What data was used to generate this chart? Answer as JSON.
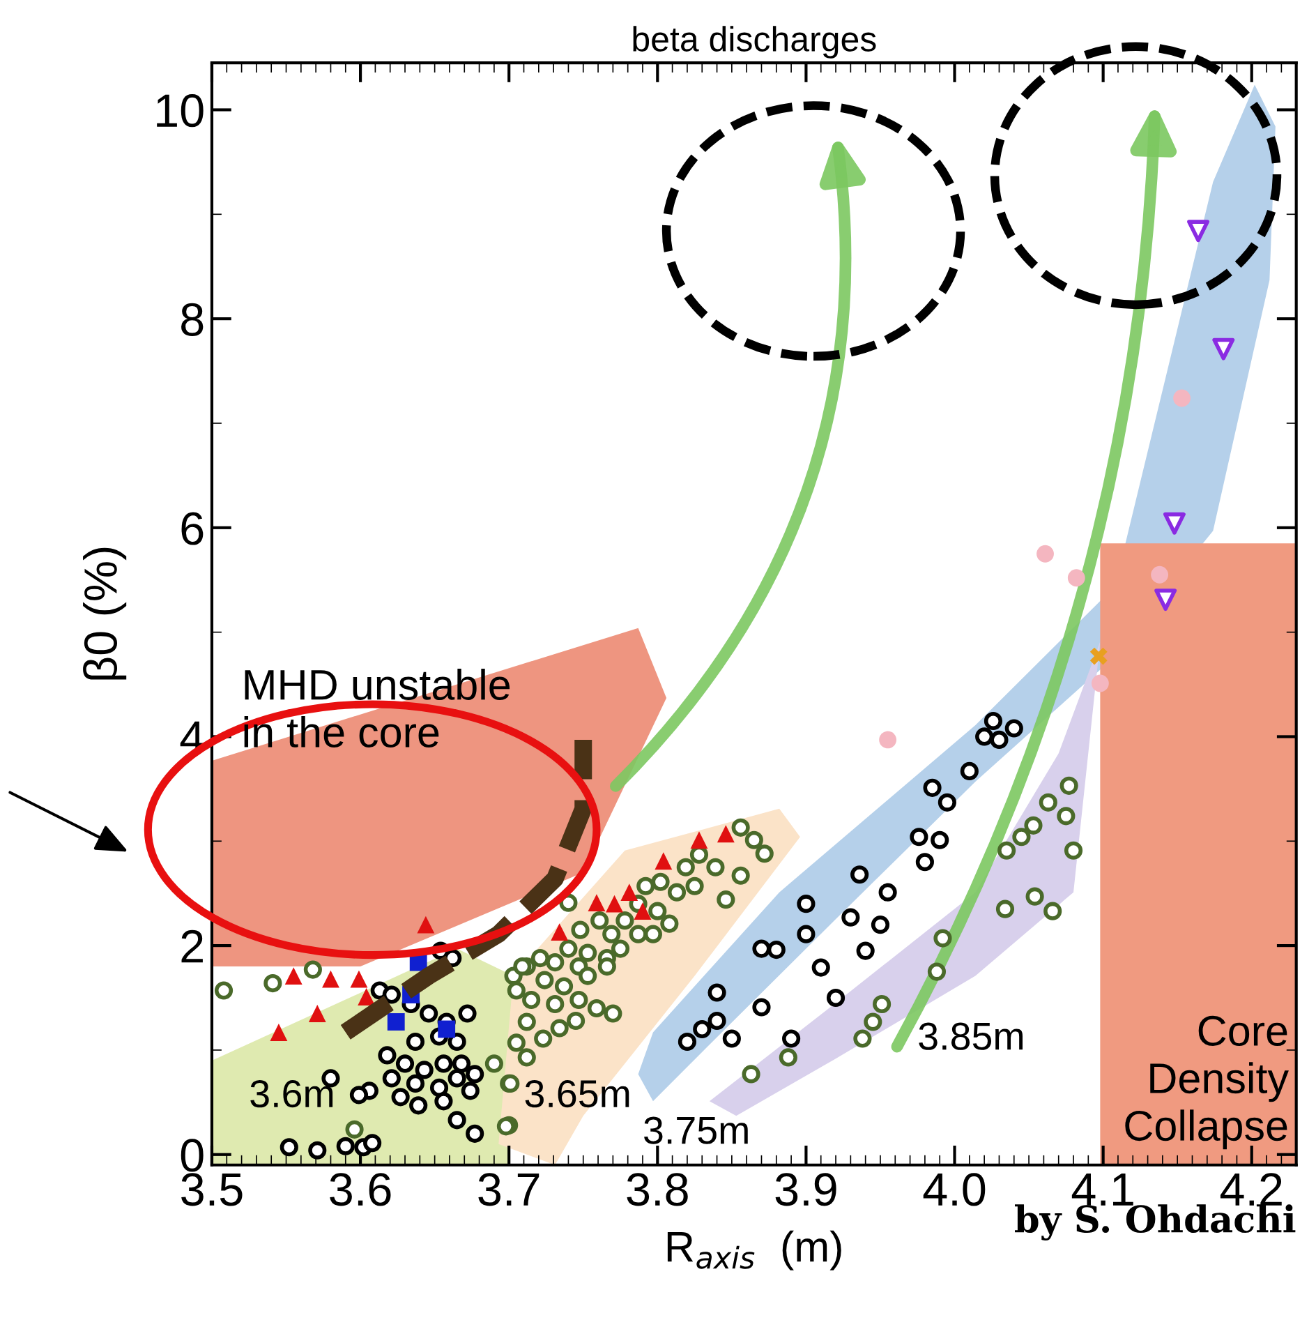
{
  "chart_data": {
    "type": "scatter",
    "title": "beta discharges",
    "xlabel": "R$_{axis}$  (m)",
    "ylabel": "β0 (%)",
    "xlim": [
      3.5,
      4.23
    ],
    "ylim": [
      -0.1,
      10.45
    ],
    "xticks": [
      3.5,
      3.6,
      3.7,
      3.8,
      3.9,
      {
        "value": 4.0,
        "label": "4.0"
      },
      4.1,
      4.2
    ],
    "yticks": [
      0,
      2,
      4,
      6,
      8,
      10
    ],
    "grid": false,
    "legend": false,
    "annotations": [
      "MHD unstable\nin the core",
      "3.6m",
      "3.65m",
      "3.75m",
      "3.85m",
      "Core\nDensity\nCollapse",
      "by S. Ohdachi"
    ],
    "series": [
      {
        "color": "#4a6a2a",
        "marker": "circle",
        "x": [
          3.856,
          3.865,
          3.872,
          3.856,
          3.846,
          3.839,
          3.828,
          3.819,
          3.825,
          3.813,
          3.802,
          3.792,
          3.787,
          3.8,
          3.808,
          3.778,
          3.769,
          3.761,
          3.787,
          3.797,
          3.775,
          3.766,
          3.753,
          3.74,
          3.747,
          3.731,
          3.721,
          3.712,
          3.703,
          3.724,
          3.737,
          3.753,
          3.766,
          3.759,
          3.77,
          3.745,
          3.734,
          3.723,
          3.712,
          3.705,
          3.712,
          3.7,
          3.7,
          3.705,
          3.715,
          3.731,
          3.747,
          3.74,
          3.748,
          3.863,
          3.888,
          3.508,
          3.541,
          3.568,
          3.69,
          3.701,
          3.596,
          3.698,
          3.709,
          4.077,
          4.063,
          4.075,
          4.053,
          4.08,
          4.045,
          4.035,
          4.034,
          4.054,
          4.066,
          3.992,
          3.988,
          3.951,
          3.945,
          3.938
        ],
        "values": [
          3.13,
          3.01,
          2.88,
          2.67,
          2.44,
          2.75,
          2.87,
          2.75,
          2.57,
          2.51,
          2.61,
          2.57,
          2.4,
          2.33,
          2.21,
          2.24,
          2.11,
          2.24,
          2.11,
          2.11,
          1.97,
          1.88,
          1.93,
          1.97,
          1.8,
          1.84,
          1.88,
          1.8,
          1.71,
          1.67,
          1.61,
          1.71,
          1.8,
          1.4,
          1.35,
          1.28,
          1.21,
          1.11,
          1.27,
          1.07,
          0.93,
          0.68,
          0.28,
          1.57,
          1.48,
          1.44,
          1.48,
          2.41,
          2.15,
          0.77,
          0.93,
          1.57,
          1.64,
          1.77,
          0.87,
          0.68,
          0.24,
          0.27,
          1.8,
          3.53,
          3.37,
          3.24,
          3.15,
          2.91,
          3.04,
          2.91,
          2.35,
          2.47,
          2.33,
          2.07,
          1.75,
          1.44,
          1.27,
          1.11
        ]
      },
      {
        "color": "#000000",
        "marker": "circle",
        "x": [
          3.654,
          3.662,
          3.613,
          3.621,
          3.634,
          3.646,
          3.658,
          3.672,
          3.637,
          3.653,
          3.665,
          3.618,
          3.63,
          3.643,
          3.656,
          3.668,
          3.677,
          3.621,
          3.637,
          3.653,
          3.665,
          3.674,
          3.606,
          3.599,
          3.627,
          3.639,
          3.656,
          3.665,
          3.677,
          3.58,
          3.552,
          3.571,
          3.59,
          3.602,
          3.608,
          4.026,
          4.04,
          4.02,
          4.03,
          4.01,
          3.985,
          3.995,
          3.976,
          3.99,
          3.98,
          3.936,
          3.955,
          3.95,
          3.94,
          3.83,
          3.84,
          3.84,
          3.87,
          3.87,
          3.88,
          3.9,
          3.9,
          3.91,
          3.92,
          3.93,
          3.85,
          3.82,
          3.89
        ],
        "values": [
          1.95,
          1.88,
          1.57,
          1.53,
          1.44,
          1.35,
          1.27,
          1.35,
          1.08,
          1.13,
          1.08,
          0.95,
          0.87,
          0.81,
          0.87,
          0.87,
          0.77,
          0.73,
          0.68,
          0.64,
          0.73,
          0.61,
          0.61,
          0.57,
          0.55,
          0.47,
          0.51,
          0.33,
          0.2,
          0.73,
          0.07,
          0.04,
          0.08,
          0.07,
          0.11,
          4.15,
          4.08,
          4.0,
          3.97,
          3.67,
          3.51,
          3.37,
          3.04,
          3.01,
          2.8,
          2.68,
          2.51,
          2.2,
          1.95,
          1.2,
          1.28,
          1.55,
          1.41,
          1.97,
          1.96,
          2.4,
          2.11,
          1.79,
          1.5,
          2.27,
          1.11,
          1.08,
          1.11
        ]
      },
      {
        "color": "#e01010",
        "marker": "triangle",
        "x": [
          3.644,
          3.545,
          3.571,
          3.604,
          3.58,
          3.599,
          3.734,
          3.759,
          3.771,
          3.781,
          3.79,
          3.804,
          3.828,
          3.846,
          3.555
        ],
        "values": [
          2.2,
          1.17,
          1.35,
          1.51,
          1.68,
          1.68,
          2.13,
          2.41,
          2.4,
          2.51,
          2.33,
          2.81,
          3.01,
          3.07,
          1.71
        ]
      },
      {
        "color": "#1020d0",
        "marker": "square",
        "x": [
          3.639,
          3.624,
          3.658,
          3.634
        ],
        "values": [
          1.84,
          1.27,
          1.2,
          1.53
        ]
      },
      {
        "color": "#8a2be2",
        "marker": "triangle-down",
        "x": [
          4.164,
          4.181,
          4.148,
          4.142
        ],
        "values": [
          8.84,
          7.71,
          6.04,
          5.31
        ]
      },
      {
        "color": "#f4b6c0",
        "marker": "circle-filled",
        "x": [
          4.153,
          4.061,
          4.082,
          3.955,
          4.138,
          4.098
        ],
        "values": [
          7.24,
          5.75,
          5.52,
          3.97,
          5.55,
          4.51
        ]
      },
      {
        "color": "#e8a020",
        "marker": "cross",
        "x": [
          4.097
        ],
        "values": [
          4.77
        ]
      }
    ]
  }
}
